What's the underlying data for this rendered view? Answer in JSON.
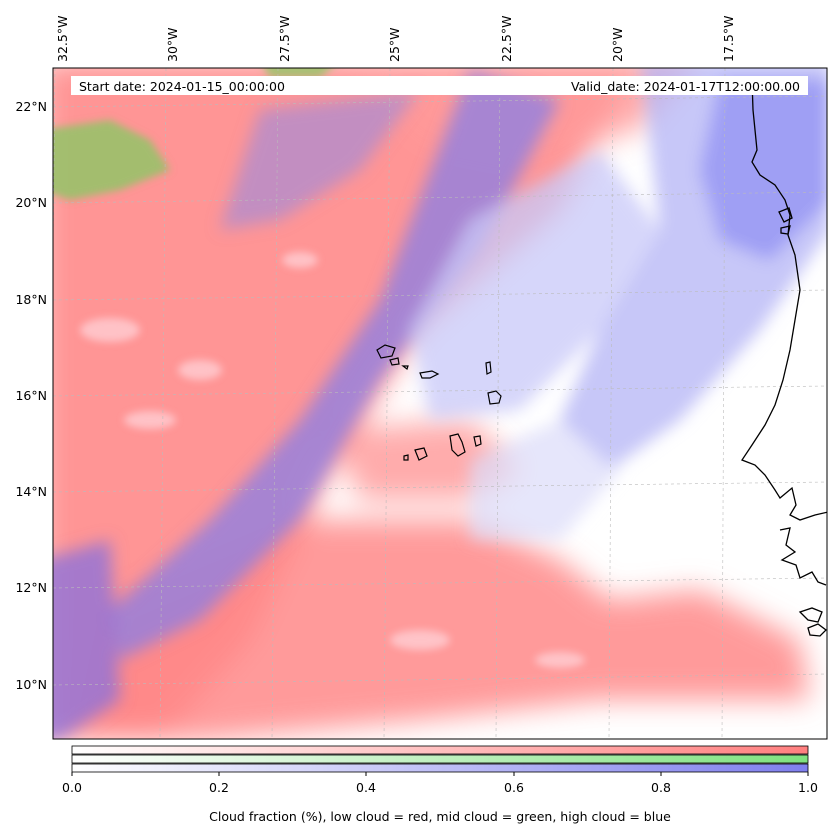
{
  "map": {
    "info": {
      "start_label": "Start date: 2024-01-15_00:00:00",
      "valid_label": "Valid_date: 2024-01-17T12:00:00.00"
    },
    "lon_labels": [
      "32.5°W",
      "30°W",
      "27.5°W",
      "25°W",
      "22.5°W",
      "20°W",
      "17.5°W"
    ],
    "lat_labels": [
      "22°N",
      "20°N",
      "18°N",
      "16°N",
      "14°N",
      "12°N",
      "10°N"
    ],
    "layer_colors": {
      "low_cloud": "#ff7f7f",
      "mid_cloud": "#7fe27f",
      "high_cloud": "#7f7fee",
      "coastline": "#000000",
      "gridline": "#bbbbbb"
    }
  },
  "colorbar": {
    "ticks": [
      "0.0",
      "0.2",
      "0.4",
      "0.6",
      "0.8",
      "1.0"
    ],
    "title": "Cloud fraction (%), low cloud = red, mid cloud = green, high cloud = blue",
    "bands": [
      "low cloud",
      "mid cloud",
      "high cloud"
    ]
  }
}
